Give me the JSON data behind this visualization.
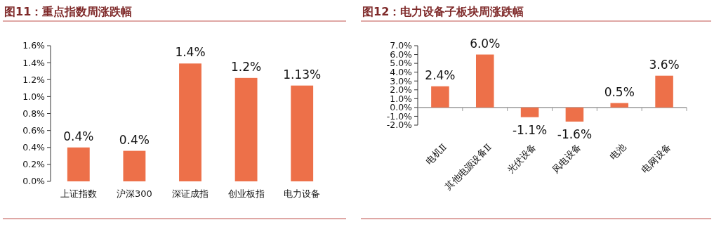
{
  "chart_data": [
    {
      "type": "bar",
      "title": "图11：重点指数周涨跌幅",
      "categories": [
        "上证指数",
        "沪深300",
        "深证成指",
        "创业板指",
        "电力设备"
      ],
      "values": [
        0.4,
        0.36,
        1.39,
        1.22,
        1.13
      ],
      "value_labels": [
        "0.4%",
        "0.4%",
        "1.4%",
        "1.2%",
        "1.13%"
      ],
      "color": "#ed7049",
      "ylim": [
        0,
        1.6
      ],
      "yticks": [
        {
          "value": 0,
          "label": "0.0%"
        },
        {
          "value": 0.2,
          "label": "0.2%"
        },
        {
          "value": 0.4,
          "label": "0.4%"
        },
        {
          "value": 0.6,
          "label": "0.6%"
        },
        {
          "value": 0.8,
          "label": "0.8%"
        },
        {
          "value": 1.0,
          "label": "1.0%"
        },
        {
          "value": 1.2,
          "label": "1.2%"
        },
        {
          "value": 1.4,
          "label": "1.4%"
        },
        {
          "value": 1.6,
          "label": "1.6%"
        }
      ]
    },
    {
      "type": "bar",
      "title": "图12：电力设备子板块周涨跌幅",
      "categories": [
        "电机Ⅱ",
        "其他电源设备Ⅱ",
        "光伏设备",
        "风电设备",
        "电池",
        "电网设备"
      ],
      "values": [
        2.4,
        6.0,
        -1.1,
        -1.6,
        0.5,
        3.6
      ],
      "value_labels": [
        "2.4%",
        "6.0%",
        "-1.1%",
        "-1.6%",
        "0.5%",
        "3.6%"
      ],
      "color": "#ed7049",
      "ylim": [
        -2,
        7
      ],
      "yticks": [
        {
          "value": -2,
          "label": "-2.0%"
        },
        {
          "value": -1,
          "label": "-1.0%"
        },
        {
          "value": 0,
          "label": "0.0%"
        },
        {
          "value": 1,
          "label": "1.0%"
        },
        {
          "value": 2,
          "label": "2.0%"
        },
        {
          "value": 3,
          "label": "3.0%"
        },
        {
          "value": 4,
          "label": "4.0%"
        },
        {
          "value": 5,
          "label": "5.0%"
        },
        {
          "value": 6,
          "label": "6.0%"
        },
        {
          "value": 7,
          "label": "7.0%"
        }
      ]
    }
  ]
}
